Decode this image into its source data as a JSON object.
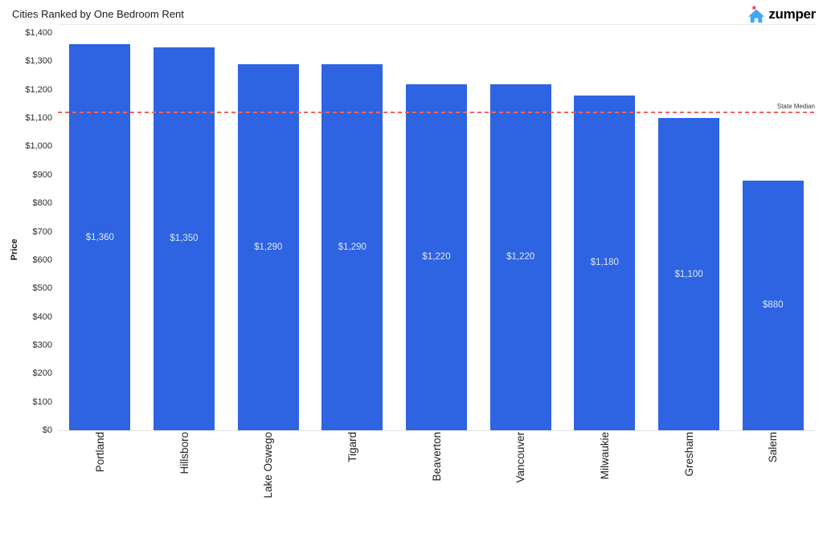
{
  "header": {
    "title": "Cities Ranked by One Bedroom Rent",
    "logo": {
      "text": "zumper",
      "house_color": "#41a7f5",
      "dot_color": "#ff3d81",
      "text_color": "#26263a"
    }
  },
  "chart_data": {
    "type": "bar",
    "title": "Cities Ranked by One Bedroom Rent",
    "categories": [
      "Portland",
      "Hillsboro",
      "Lake Oswego",
      "Tigard",
      "Beaverton",
      "Vancouver",
      "Milwaukie",
      "Gresham",
      "Salem"
    ],
    "values": [
      1360,
      1350,
      1290,
      1290,
      1220,
      1220,
      1180,
      1100,
      880
    ],
    "bar_labels": [
      "$1,360",
      "$1,350",
      "$1,290",
      "$1,290",
      "$1,220",
      "$1,220",
      "$1,180",
      "$1,100",
      "$880"
    ],
    "xlabel": "",
    "ylabel": "Price",
    "ylim": [
      0,
      1400
    ],
    "ytick_step": 100,
    "ytick_labels": [
      "$0",
      "$100",
      "$200",
      "$300",
      "$400",
      "$500",
      "$600",
      "$700",
      "$800",
      "$900",
      "$1,000",
      "$1,100",
      "$1,200",
      "$1,300",
      "$1,400"
    ],
    "grid": false,
    "legend": false,
    "bar_color": "#2e64e2",
    "value_label_color": "#dde6f8",
    "reference_line": {
      "label": "State Median",
      "value": 1120,
      "color": "#f2635f",
      "style": "dashed"
    }
  }
}
